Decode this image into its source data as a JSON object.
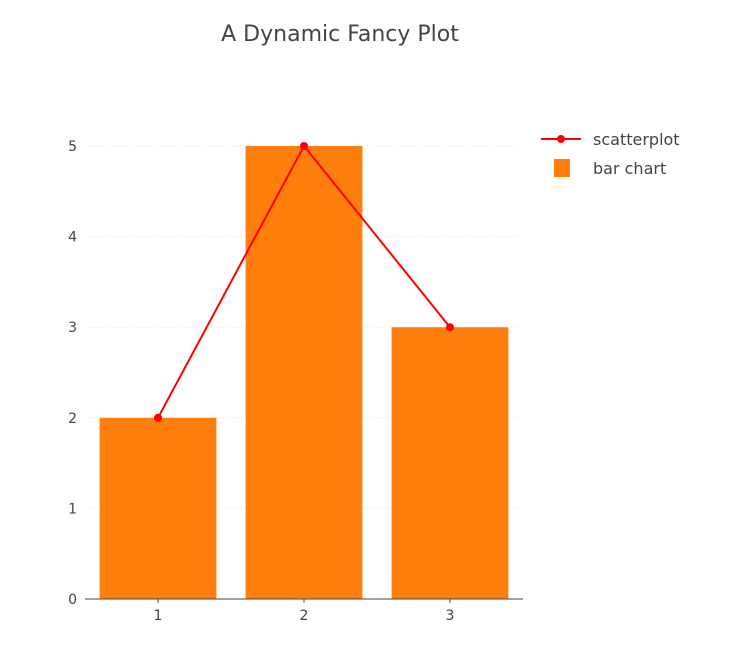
{
  "chart_data": {
    "title": "A Dynamic Fancy Plot",
    "x": [
      1,
      2,
      3
    ],
    "x_tick_labels": [
      "1",
      "2",
      "3"
    ],
    "ylim": [
      0,
      5
    ],
    "y_ticks": [
      0,
      1,
      2,
      3,
      4,
      5
    ],
    "grid": true,
    "legend_position": "top-right",
    "series": [
      {
        "name": "scatterplot",
        "type": "line",
        "values": [
          2,
          5,
          3
        ],
        "color": "#ff0000",
        "markers": true
      },
      {
        "name": "bar chart",
        "type": "bar",
        "values": [
          2,
          5,
          3
        ],
        "color": "#ff7f0e"
      }
    ]
  }
}
